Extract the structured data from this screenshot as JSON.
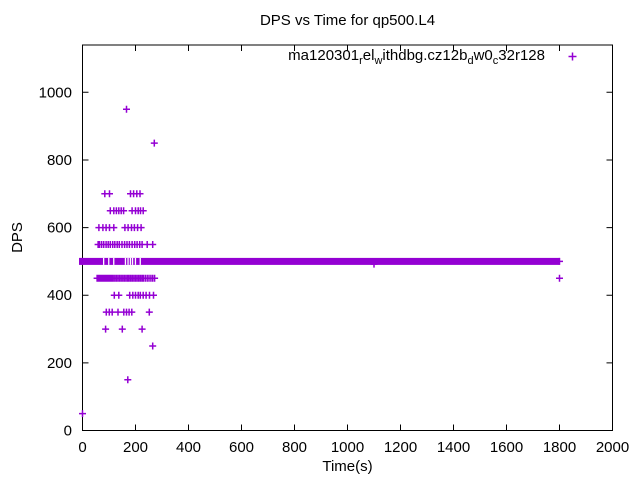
{
  "colors": {
    "marker": "#9400D3",
    "axis": "#000000",
    "background": "#FFFFFF"
  },
  "chart_data": {
    "type": "scatter",
    "title": "DPS vs Time for qp500.L4",
    "xlabel": "Time(s)",
    "ylabel": "DPS",
    "xlim": [
      0,
      2000
    ],
    "ylim": [
      0,
      1140
    ],
    "grid": false,
    "legend_position": "top-right-inside",
    "xticks": [
      0,
      200,
      400,
      600,
      800,
      1000,
      1200,
      1400,
      1600,
      1800,
      2000
    ],
    "yticks": [
      0,
      200,
      400,
      600,
      800,
      1000
    ],
    "legend": {
      "plain": "ma120301_rel_withdbg.cz12b_dw0_c32r128",
      "marker": "+",
      "segments": [
        {
          "text": "ma120301"
        },
        {
          "sub": "r"
        },
        {
          "text": "el"
        },
        {
          "sub": "w"
        },
        {
          "text": "ithdbg.cz12b"
        },
        {
          "sub": "d"
        },
        {
          "text": "w0"
        },
        {
          "sub": "c"
        },
        {
          "text": "32r128"
        }
      ]
    },
    "series": [
      {
        "name": "ma120301_rel_withdbg.cz12b_dw0_c32r128",
        "marker": "plus",
        "color": "#9400D3",
        "band": {
          "dps": 500,
          "t_start": 0,
          "t_end": 1800,
          "note": "continuous run of overlapping markers at DPS 500",
          "gap_times": [
            80,
            99,
            118,
            162,
            172,
            181,
            189,
            200,
            218
          ]
        },
        "rows": [
          {
            "dps": 950,
            "times": [
              166
            ]
          },
          {
            "dps": 850,
            "times": [
              271
            ]
          },
          {
            "dps": 700,
            "times": [
              84,
              102,
              181,
              193,
              205,
              217
            ]
          },
          {
            "dps": 650,
            "times": [
              105,
              118,
              128,
              137,
              146,
              155,
              187,
              200,
              210,
              219,
              229
            ]
          },
          {
            "dps": 600,
            "times": [
              62,
              77,
              89,
              102,
              118,
              160,
              172,
              185,
              196,
              208,
              221
            ]
          },
          {
            "dps": 550,
            "times": [
              59,
              64,
              72,
              80,
              89,
              97,
              105,
              114,
              122,
              131,
              139,
              149,
              159,
              168,
              177,
              187,
              197,
              206,
              216,
              225,
              244,
              265
            ]
          },
          {
            "dps": 500,
            "times": [
              0,
              1800
            ]
          },
          {
            "dps": 492,
            "times": [
              1100
            ]
          },
          {
            "dps": 450,
            "times": [
              55,
              58,
              61,
              64,
              67,
              70,
              73,
              76,
              79,
              82,
              85,
              88,
              92,
              96,
              100,
              105,
              110,
              116,
              122,
              128,
              134,
              140,
              146,
              152,
              158,
              164,
              170,
              176,
              182,
              188,
              194,
              200,
              206,
              212,
              218,
              224,
              230,
              237,
              244,
              251,
              258,
              265,
              272,
              1800
            ]
          },
          {
            "dps": 400,
            "times": [
              120,
              137,
              178,
              190,
              200,
              210,
              218,
              229,
              240,
              253,
              268
            ]
          },
          {
            "dps": 350,
            "times": [
              90,
              101,
              112,
              134,
              156,
              166,
              176,
              186,
              252
            ]
          },
          {
            "dps": 300,
            "times": [
              87,
              150,
              225
            ]
          },
          {
            "dps": 250,
            "times": [
              265
            ]
          },
          {
            "dps": 150,
            "times": [
              171
            ]
          },
          {
            "dps": 50,
            "times": [
              0
            ]
          }
        ]
      }
    ]
  }
}
